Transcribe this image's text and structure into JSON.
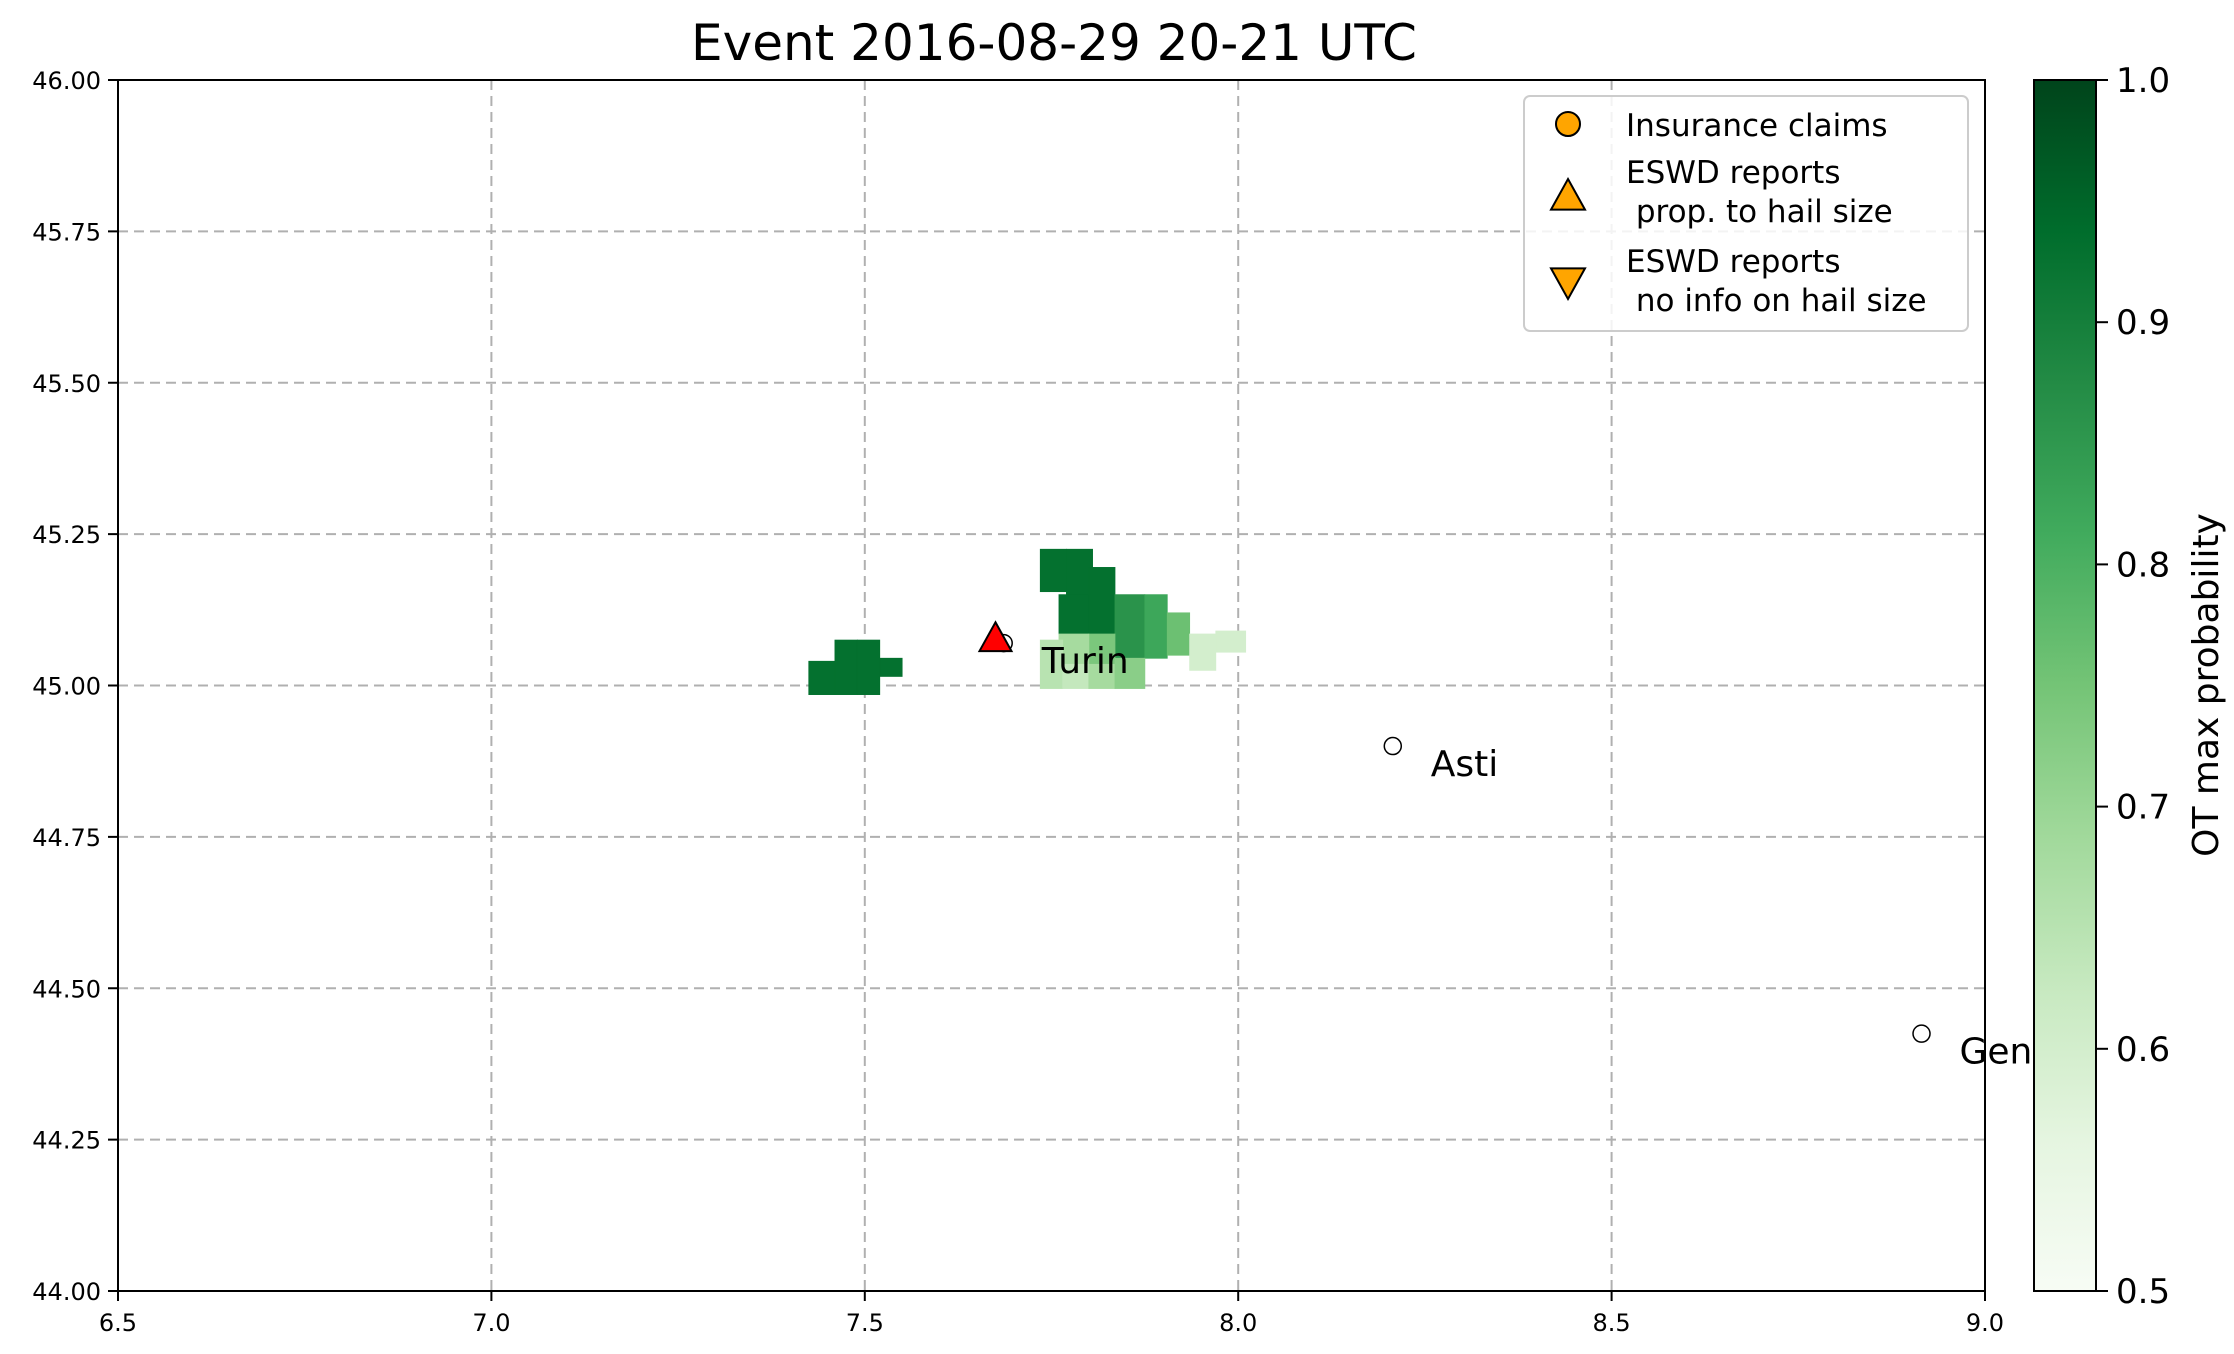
{
  "chart_data": {
    "type": "scatter",
    "title": "Event 2016-08-29 20-21 UTC",
    "xlabel": "",
    "ylabel": "",
    "xlim": [
      6.5,
      9.0
    ],
    "ylim": [
      44.0,
      46.0
    ],
    "x_ticks": [
      6.5,
      7.0,
      7.5,
      8.0,
      8.5,
      9.0
    ],
    "x_tick_labels": [
      "6.5",
      "7.0",
      "7.5",
      "8.0",
      "8.5",
      "9.0"
    ],
    "y_ticks": [
      44.0,
      44.25,
      44.5,
      44.75,
      45.0,
      45.25,
      45.5,
      45.75,
      46.0
    ],
    "y_tick_labels": [
      "44.00",
      "44.25",
      "44.50",
      "44.75",
      "45.00",
      "45.25",
      "45.50",
      "45.75",
      "46.00"
    ],
    "grid": true,
    "legend_position": "top-right",
    "legend": [
      {
        "label": "Insurance claims",
        "marker": "circle",
        "color": "#ffa500"
      },
      {
        "label": "ESWD reports\n prop. to hail size",
        "marker": "triangle-up",
        "color": "#ffa500"
      },
      {
        "label": "ESWD reports\n no info on hail size",
        "marker": "triangle-down",
        "color": "#ffa500"
      }
    ],
    "colorbar": {
      "label": "OT max probability",
      "min": 0.5,
      "max": 1.0,
      "ticks": [
        0.5,
        0.6,
        0.7,
        0.8,
        0.9,
        1.0
      ],
      "tick_labels": [
        "0.5",
        "0.6",
        "0.7",
        "0.8",
        "0.9",
        "1.0"
      ],
      "colormap": "Greens"
    },
    "cities": [
      {
        "name": "Turin",
        "lon": 7.686,
        "lat": 45.07
      },
      {
        "name": "Asti",
        "lon": 8.207,
        "lat": 44.9
      },
      {
        "name": "Genoa",
        "lon": 8.915,
        "lat": 44.425
      }
    ],
    "eswd_reports": [
      {
        "lon": 7.675,
        "lat": 45.078,
        "marker": "triangle-up",
        "color": "#ff0000"
      }
    ],
    "ot_cells": [
      {
        "lon0": 7.425,
        "lon1": 7.46,
        "lat0": 44.985,
        "lat1": 45.04,
        "p": 0.93
      },
      {
        "lon0": 7.46,
        "lon1": 7.49,
        "lat0": 44.985,
        "lat1": 45.075,
        "p": 0.93
      },
      {
        "lon0": 7.49,
        "lon1": 7.52,
        "lat0": 44.985,
        "lat1": 45.075,
        "p": 0.93
      },
      {
        "lon0": 7.52,
        "lon1": 7.55,
        "lat0": 45.015,
        "lat1": 45.045,
        "p": 0.93
      },
      {
        "lon0": 7.735,
        "lon1": 7.77,
        "lat0": 45.155,
        "lat1": 45.225,
        "p": 0.93
      },
      {
        "lon0": 7.77,
        "lon1": 7.805,
        "lat0": 45.15,
        "lat1": 45.225,
        "p": 0.93
      },
      {
        "lon0": 7.76,
        "lon1": 7.8,
        "lat0": 45.085,
        "lat1": 45.15,
        "p": 0.93
      },
      {
        "lon0": 7.8,
        "lon1": 7.835,
        "lat0": 45.085,
        "lat1": 45.195,
        "p": 0.93
      },
      {
        "lon0": 7.835,
        "lon1": 7.875,
        "lat0": 45.045,
        "lat1": 45.15,
        "p": 0.86
      },
      {
        "lon0": 7.875,
        "lon1": 7.905,
        "lat0": 45.045,
        "lat1": 45.15,
        "p": 0.82
      },
      {
        "lon0": 7.905,
        "lon1": 7.935,
        "lat0": 45.05,
        "lat1": 45.12,
        "p": 0.76
      },
      {
        "lon0": 7.8,
        "lon1": 7.835,
        "lat0": 45.035,
        "lat1": 45.085,
        "p": 0.74
      },
      {
        "lon0": 7.76,
        "lon1": 7.8,
        "lat0": 45.035,
        "lat1": 45.085,
        "p": 0.68
      },
      {
        "lon0": 7.735,
        "lon1": 7.765,
        "lat0": 44.995,
        "lat1": 45.075,
        "p": 0.65
      },
      {
        "lon0": 7.765,
        "lon1": 7.8,
        "lat0": 44.995,
        "lat1": 45.035,
        "p": 0.63
      },
      {
        "lon0": 7.8,
        "lon1": 7.835,
        "lat0": 44.995,
        "lat1": 45.035,
        "p": 0.68
      },
      {
        "lon0": 7.835,
        "lon1": 7.875,
        "lat0": 44.995,
        "lat1": 45.045,
        "p": 0.72
      },
      {
        "lon0": 7.935,
        "lon1": 7.97,
        "lat0": 45.025,
        "lat1": 45.085,
        "p": 0.6
      },
      {
        "lon0": 7.97,
        "lon1": 8.01,
        "lat0": 45.055,
        "lat1": 45.09,
        "p": 0.6
      }
    ]
  }
}
